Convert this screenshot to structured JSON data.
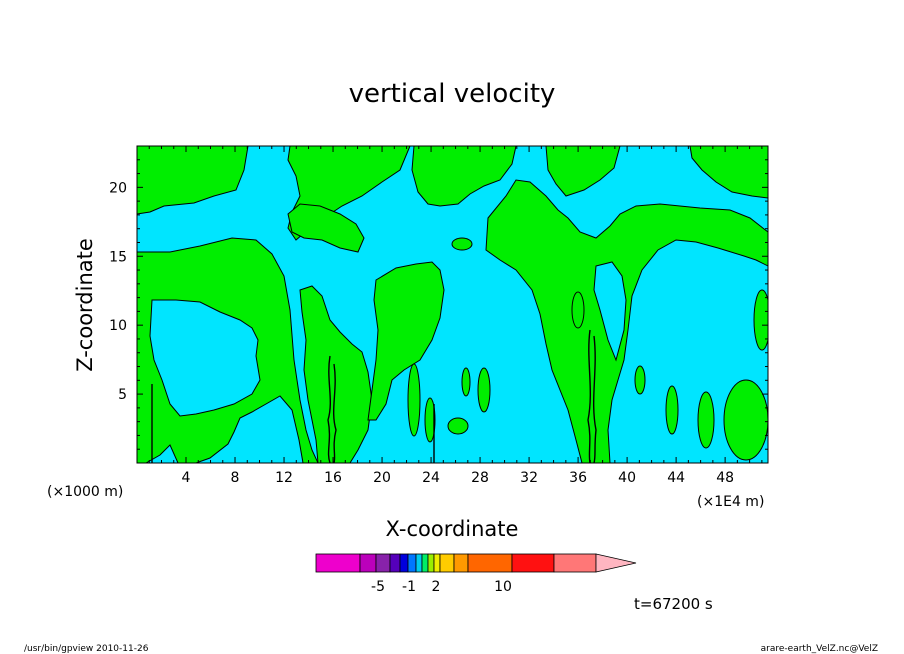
{
  "chart_data": {
    "type": "heatmap",
    "title": "vertical velocity",
    "xlabel": "X-coordinate",
    "ylabel": "Z-coordinate",
    "x_unit": "(×1000 m)",
    "x_unit_right": "(×1E4 m)",
    "x_ticks": [
      4,
      8,
      12,
      16,
      20,
      24,
      28,
      32,
      36,
      40,
      44,
      48
    ],
    "y_ticks": [
      5,
      10,
      15,
      20
    ],
    "xlim": [
      0,
      51.5
    ],
    "ylim": [
      0,
      23
    ],
    "grid": false,
    "colors": {
      "negative": "#00e5ff",
      "positive": "#00ee00",
      "contour": "#000000"
    },
    "colorbar": {
      "segments": [
        {
          "color": "#ee00cc"
        },
        {
          "color": "#bb00bb"
        },
        {
          "color": "#8822aa"
        },
        {
          "color": "#5500bb"
        },
        {
          "color": "#0000dd"
        },
        {
          "color": "#0077ff"
        },
        {
          "color": "#00ccee"
        },
        {
          "color": "#00ee66"
        },
        {
          "color": "#99ee00"
        },
        {
          "color": "#eeee00"
        },
        {
          "color": "#ffcc00"
        },
        {
          "color": "#ff9900"
        },
        {
          "color": "#ff6600"
        },
        {
          "color": "#ff1111"
        },
        {
          "color": "#ff7777"
        },
        {
          "color": "#ffb6c1"
        }
      ],
      "labels": [
        "-5",
        "-1",
        "2",
        "10"
      ]
    },
    "annotation": "t=67200 s"
  },
  "footer": {
    "left": "/usr/bin/gpview  2010-11-26",
    "right": "arare-earth_VelZ.nc@VelZ"
  }
}
